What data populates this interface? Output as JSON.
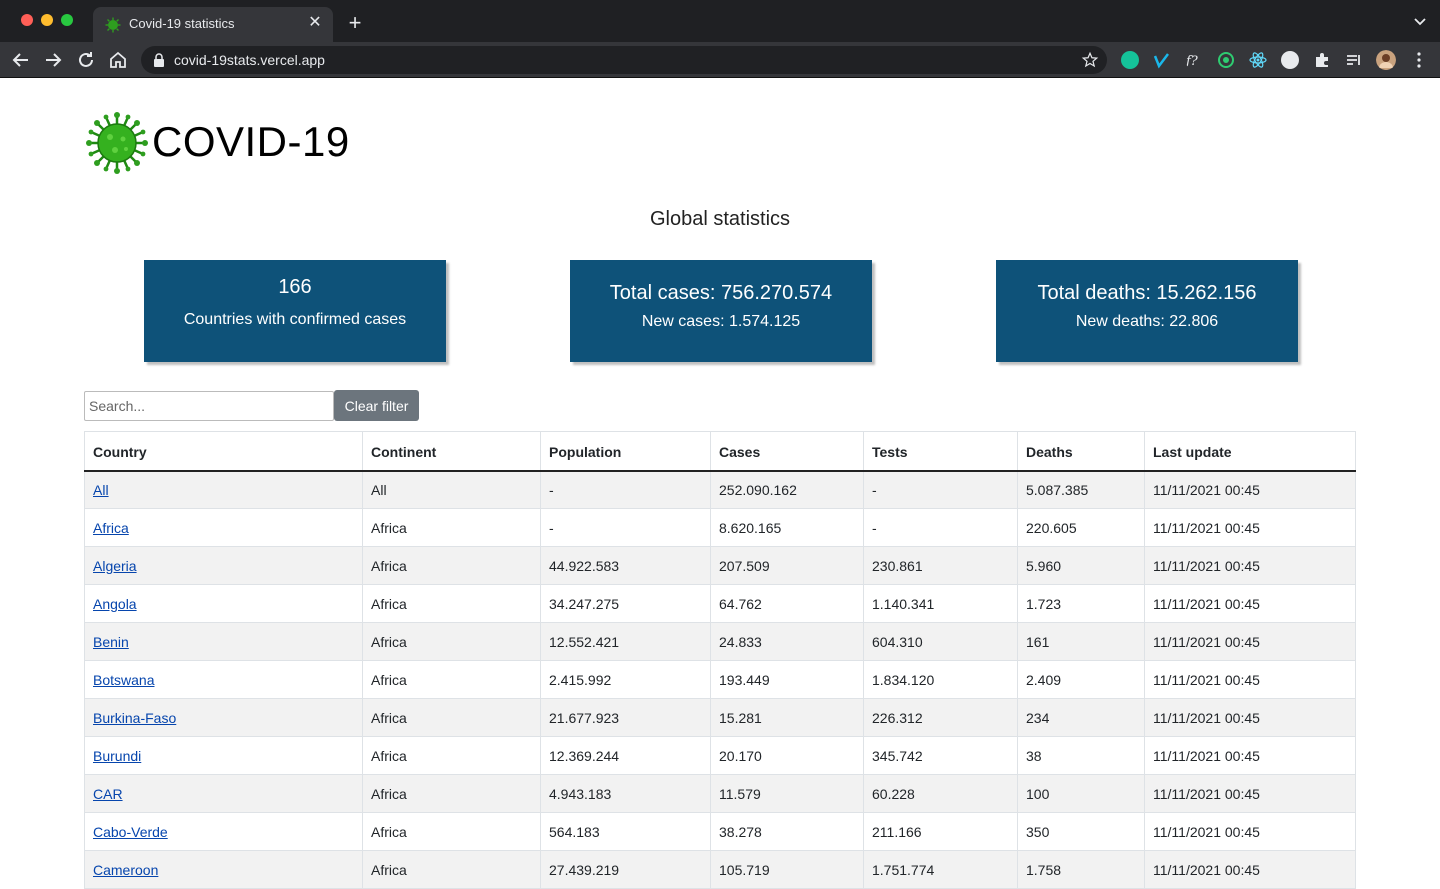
{
  "browser": {
    "tab_title": "Covid-19 statistics",
    "url": "covid-19stats.vercel.app",
    "colors": {
      "frame": "#1f2023",
      "toolbar": "#35363a"
    }
  },
  "header": {
    "logo_text": "COVID-19"
  },
  "global": {
    "title": "Global statistics",
    "countries_count": "166",
    "countries_label": "Countries with confirmed cases",
    "total_cases": "Total cases: 756.270.574",
    "new_cases": "New cases: 1.574.125",
    "total_deaths": "Total deaths: 15.262.156",
    "new_deaths": "New deaths: 22.806",
    "card_color": "#0e5279"
  },
  "filter": {
    "placeholder": "Search...",
    "clear_label": "Clear filter"
  },
  "table": {
    "headers": [
      "Country",
      "Continent",
      "Population",
      "Cases",
      "Tests",
      "Deaths",
      "Last update"
    ],
    "rows": [
      [
        "All",
        "All",
        "-",
        "252.090.162",
        "-",
        "5.087.385",
        "11/11/2021 00:45"
      ],
      [
        "Africa",
        "Africa",
        "-",
        "8.620.165",
        "-",
        "220.605",
        "11/11/2021 00:45"
      ],
      [
        "Algeria",
        "Africa",
        "44.922.583",
        "207.509",
        "230.861",
        "5.960",
        "11/11/2021 00:45"
      ],
      [
        "Angola",
        "Africa",
        "34.247.275",
        "64.762",
        "1.140.341",
        "1.723",
        "11/11/2021 00:45"
      ],
      [
        "Benin",
        "Africa",
        "12.552.421",
        "24.833",
        "604.310",
        "161",
        "11/11/2021 00:45"
      ],
      [
        "Botswana",
        "Africa",
        "2.415.992",
        "193.449",
        "1.834.120",
        "2.409",
        "11/11/2021 00:45"
      ],
      [
        "Burkina-Faso",
        "Africa",
        "21.677.923",
        "15.281",
        "226.312",
        "234",
        "11/11/2021 00:45"
      ],
      [
        "Burundi",
        "Africa",
        "12.369.244",
        "20.170",
        "345.742",
        "38",
        "11/11/2021 00:45"
      ],
      [
        "CAR",
        "Africa",
        "4.943.183",
        "11.579",
        "60.228",
        "100",
        "11/11/2021 00:45"
      ],
      [
        "Cabo-Verde",
        "Africa",
        "564.183",
        "38.278",
        "211.166",
        "350",
        "11/11/2021 00:45"
      ],
      [
        "Cameroon",
        "Africa",
        "27.439.219",
        "105.719",
        "1.751.774",
        "1.758",
        "11/11/2021 00:45"
      ]
    ]
  }
}
